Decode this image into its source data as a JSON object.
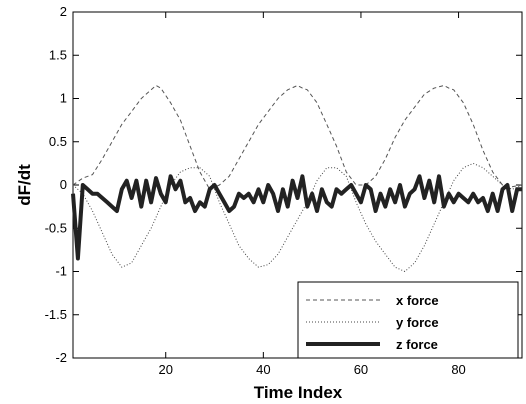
{
  "chart_data": {
    "type": "line",
    "title": "",
    "xlabel": "Time Index",
    "ylabel": "dF/dt",
    "xlim": [
      1,
      93
    ],
    "ylim": [
      -2,
      2
    ],
    "xticks": [
      20,
      40,
      60,
      80
    ],
    "yticks": [
      -2,
      -1.5,
      -1,
      -0.5,
      0,
      0.5,
      1,
      1.5,
      2
    ],
    "ytick_labels": [
      "-2",
      "-1.5",
      "-1",
      "-0.5",
      "0",
      "0.5",
      "1",
      "1.5",
      "2"
    ],
    "grid": false,
    "legend_position": "bottom-right",
    "series": [
      {
        "name": "x force",
        "style": "dashed",
        "color": "#555555",
        "x": [
          1,
          3,
          5,
          7,
          9,
          11,
          13,
          15,
          17,
          18,
          19,
          21,
          23,
          25,
          27,
          29,
          31,
          33,
          35,
          37,
          39,
          41,
          43,
          45,
          47,
          48,
          49,
          51,
          53,
          55,
          57,
          59,
          61,
          63,
          65,
          67,
          69,
          71,
          73,
          75,
          77,
          78,
          79,
          81,
          83,
          85,
          87,
          89,
          91,
          93
        ],
        "y": [
          0.0,
          0.08,
          0.12,
          0.3,
          0.5,
          0.7,
          0.85,
          1.0,
          1.1,
          1.15,
          1.12,
          0.95,
          0.75,
          0.45,
          0.15,
          -0.05,
          0.0,
          0.1,
          0.3,
          0.5,
          0.7,
          0.85,
          1.0,
          1.1,
          1.15,
          1.12,
          1.1,
          0.95,
          0.7,
          0.45,
          0.15,
          0.0,
          0.0,
          0.1,
          0.3,
          0.55,
          0.75,
          0.9,
          1.05,
          1.12,
          1.15,
          1.12,
          1.1,
          0.95,
          0.7,
          0.4,
          0.15,
          0.0,
          -0.02,
          0.0
        ]
      },
      {
        "name": "y force",
        "style": "dotted",
        "color": "#444444",
        "x": [
          1,
          3,
          5,
          7,
          9,
          11,
          13,
          15,
          17,
          19,
          21,
          23,
          25,
          27,
          29,
          31,
          33,
          35,
          37,
          39,
          41,
          43,
          45,
          47,
          49,
          51,
          53,
          55,
          57,
          59,
          61,
          63,
          65,
          67,
          69,
          71,
          73,
          75,
          77,
          79,
          81,
          83,
          85,
          87,
          89,
          91,
          93
        ],
        "y": [
          0.0,
          -0.1,
          -0.3,
          -0.55,
          -0.8,
          -0.95,
          -0.9,
          -0.7,
          -0.5,
          -0.25,
          0.0,
          0.15,
          0.2,
          0.2,
          0.1,
          -0.2,
          -0.45,
          -0.7,
          -0.85,
          -0.95,
          -0.92,
          -0.8,
          -0.6,
          -0.4,
          -0.2,
          0.05,
          0.2,
          0.2,
          0.1,
          -0.2,
          -0.45,
          -0.65,
          -0.8,
          -0.95,
          -1.0,
          -0.9,
          -0.7,
          -0.45,
          -0.2,
          0.05,
          0.2,
          0.25,
          0.2,
          0.1,
          0.0,
          -0.05,
          0.0
        ]
      },
      {
        "name": "z force",
        "style": "thick",
        "color": "#222222",
        "x": [
          1,
          2,
          3,
          4,
          5,
          6,
          7,
          8,
          9,
          10,
          11,
          12,
          13,
          14,
          15,
          16,
          17,
          18,
          19,
          20,
          21,
          22,
          23,
          24,
          25,
          26,
          27,
          28,
          29,
          30,
          31,
          32,
          33,
          34,
          35,
          36,
          37,
          38,
          39,
          40,
          41,
          42,
          43,
          44,
          45,
          46,
          47,
          48,
          49,
          50,
          51,
          52,
          53,
          54,
          55,
          56,
          57,
          58,
          59,
          60,
          61,
          62,
          63,
          64,
          65,
          66,
          67,
          68,
          69,
          70,
          71,
          72,
          73,
          74,
          75,
          76,
          77,
          78,
          79,
          80,
          81,
          82,
          83,
          84,
          85,
          86,
          87,
          88,
          89,
          90,
          91,
          92,
          93
        ],
        "y": [
          -0.1,
          -0.85,
          0.0,
          -0.05,
          -0.1,
          -0.1,
          -0.15,
          -0.2,
          -0.25,
          -0.3,
          -0.05,
          0.05,
          -0.15,
          0.05,
          -0.25,
          0.05,
          -0.2,
          0.08,
          -0.1,
          -0.2,
          0.1,
          -0.05,
          0.05,
          -0.2,
          -0.15,
          -0.3,
          -0.2,
          -0.25,
          -0.05,
          0.0,
          -0.1,
          -0.2,
          -0.3,
          -0.25,
          -0.1,
          -0.15,
          -0.1,
          -0.2,
          -0.05,
          -0.2,
          0.0,
          -0.1,
          -0.3,
          -0.05,
          -0.25,
          0.05,
          -0.15,
          0.1,
          -0.25,
          -0.1,
          -0.3,
          -0.05,
          -0.2,
          -0.25,
          -0.05,
          -0.1,
          -0.05,
          0.0,
          -0.1,
          -0.2,
          0.0,
          -0.05,
          -0.3,
          -0.1,
          -0.25,
          -0.05,
          -0.2,
          0.0,
          -0.25,
          -0.1,
          -0.05,
          0.1,
          -0.15,
          0.05,
          -0.2,
          0.1,
          -0.25,
          -0.1,
          -0.2,
          -0.1,
          -0.15,
          -0.2,
          -0.1,
          -0.2,
          -0.15,
          -0.3,
          -0.1,
          -0.3,
          -0.05,
          0.0,
          -0.3,
          -0.05,
          -0.05
        ]
      }
    ]
  }
}
